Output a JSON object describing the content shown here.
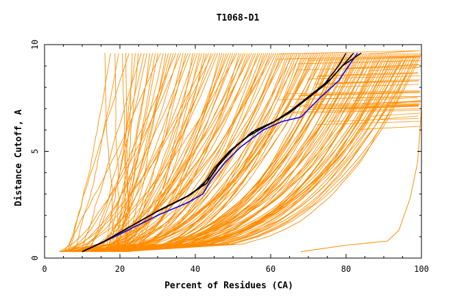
{
  "chart_data": {
    "type": "line",
    "title": "T1068-D1",
    "xlabel": "Percent of Residues (CA)",
    "ylabel": "Distance Cutoff, A",
    "xlim": [
      0,
      100
    ],
    "ylim": [
      0,
      10
    ],
    "xticks": [
      0,
      20,
      40,
      60,
      80,
      100
    ],
    "yticks": [
      0,
      5,
      10
    ],
    "grid": false,
    "legend": "none",
    "colors": {
      "models": "#ff8c00",
      "highlight": "#000000",
      "reference": "#0000ff"
    },
    "series": [
      {
        "color": "#0000ff",
        "x": [
          10,
          15,
          22,
          30,
          38,
          42,
          44,
          48,
          52,
          58,
          63,
          68,
          73,
          78,
          83
        ],
        "y": [
          0.3,
          0.7,
          1.3,
          2.0,
          2.6,
          3.0,
          3.6,
          4.5,
          5.2,
          6.0,
          6.4,
          6.6,
          7.5,
          8.3,
          9.6
        ]
      },
      {
        "color": "#000000",
        "x": [
          10,
          16,
          23,
          30,
          38,
          43,
          46,
          50,
          55,
          60,
          65,
          70,
          75,
          79,
          84
        ],
        "y": [
          0.3,
          0.8,
          1.5,
          2.2,
          2.9,
          3.5,
          4.3,
          5.1,
          5.9,
          6.3,
          6.8,
          7.5,
          8.2,
          9.0,
          9.6
        ]
      },
      {
        "color": "#000000",
        "x": [
          10,
          16,
          24,
          31,
          39,
          44,
          47,
          51,
          56,
          61,
          66,
          71,
          76,
          80,
          82
        ],
        "y": [
          0.3,
          0.8,
          1.6,
          2.3,
          3.0,
          3.8,
          4.6,
          5.3,
          6.0,
          6.4,
          7.0,
          7.7,
          8.4,
          9.2,
          9.6
        ]
      },
      {
        "color": "#000000",
        "x": [
          10,
          15,
          22,
          29,
          37,
          42,
          45,
          49,
          54,
          59,
          64,
          69,
          74,
          78,
          80
        ],
        "y": [
          0.3,
          0.7,
          1.4,
          2.1,
          2.8,
          3.4,
          4.2,
          5.0,
          5.7,
          6.2,
          6.7,
          7.4,
          8.1,
          9.0,
          9.6
        ]
      }
    ]
  }
}
